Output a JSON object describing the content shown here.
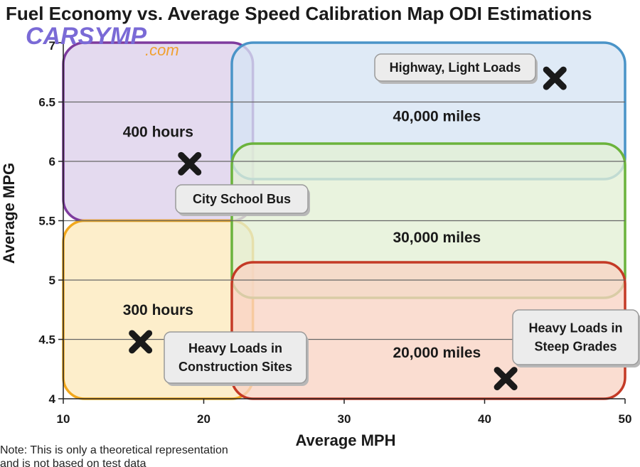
{
  "chart_data": {
    "type": "scatter",
    "title": "Fuel Economy vs. Average Speed Calibration Map ODI Estimations",
    "xlabel": "Average MPH",
    "ylabel": "Average MPG",
    "xlim": [
      10,
      50
    ],
    "ylim": [
      4,
      7
    ],
    "xticks": [
      "10",
      "20",
      "30",
      "40",
      "50"
    ],
    "yticks": [
      "4",
      "4.5",
      "5",
      "5.5",
      "6",
      "6.5",
      "7"
    ],
    "gridlines": [
      4.5,
      5,
      5.5,
      6,
      6.5
    ],
    "regions": [
      {
        "label": "400 hours",
        "x_range": [
          10,
          23.5
        ],
        "y_range": [
          5.5,
          7
        ],
        "fill": "#ddd0ea",
        "stroke": "#7e3b9e"
      },
      {
        "label": "300 hours",
        "x_range": [
          10,
          23.5
        ],
        "y_range": [
          4,
          5.5
        ],
        "fill": "#fde9bd",
        "stroke": "#f2a81d"
      },
      {
        "label": "40,000 miles",
        "x_range": [
          22,
          50
        ],
        "y_range": [
          5.85,
          7
        ],
        "fill": "#d6e4f3",
        "stroke": "#4a94c8"
      },
      {
        "label": "30,000 miles",
        "x_range": [
          22,
          50
        ],
        "y_range": [
          4.85,
          6.15
        ],
        "fill": "#e3efd5",
        "stroke": "#6bb33c"
      },
      {
        "label": "20,000 miles",
        "x_range": [
          22,
          50
        ],
        "y_range": [
          4,
          5.15
        ],
        "fill": "#f8d3c4",
        "stroke": "#c43a26"
      }
    ],
    "points": [
      {
        "name": "Highway, Light Loads",
        "x": 45,
        "y": 6.7
      },
      {
        "name": "City School Bus",
        "x": 19,
        "y": 5.98
      },
      {
        "name": "Heavy Loads in Construction Sites",
        "x": 15.5,
        "y": 4.48
      },
      {
        "name": "Heavy Loads in Steep Grades",
        "x": 41.5,
        "y": 4.17
      }
    ],
    "callouts": [
      {
        "lines": [
          "Highway, Light Loads"
        ]
      },
      {
        "lines": [
          "City School Bus"
        ]
      },
      {
        "lines": [
          "Heavy Loads in",
          "Construction Sites"
        ]
      },
      {
        "lines": [
          "Heavy Loads in",
          "Steep Grades"
        ]
      }
    ],
    "grid": true,
    "legend": "none"
  },
  "watermark": {
    "main": "CARSYMP",
    "sub": ".com"
  },
  "note": {
    "line1": "Note: This is only a theoretical representation",
    "line2": "and is not based on test data"
  }
}
